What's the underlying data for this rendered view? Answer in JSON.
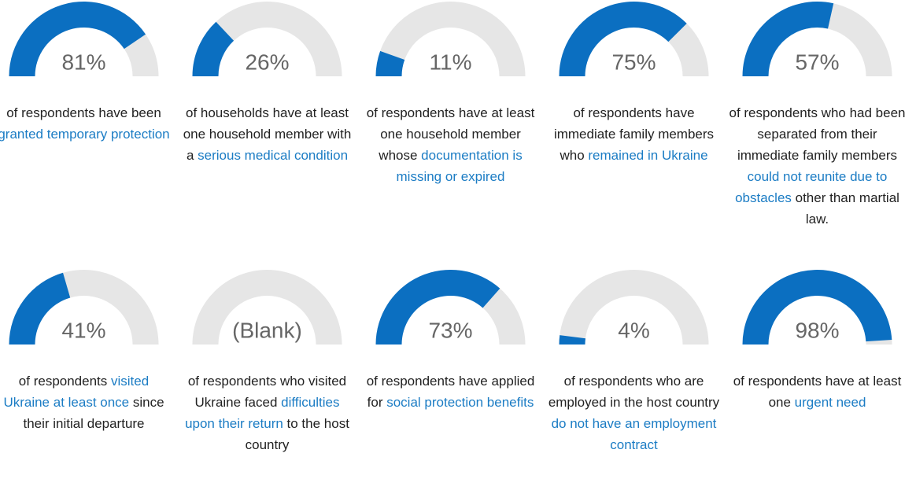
{
  "chart_data": [
    {
      "type": "gauge",
      "ylim": [
        0,
        100
      ],
      "values": [
        81
      ],
      "value_labels": [
        "81%"
      ],
      "color": "#0b6fc1",
      "track_color": "#e6e6e6",
      "description": [
        {
          "text": "of respondents have been "
        },
        {
          "text": "granted temporary protection",
          "highlight": true
        }
      ]
    },
    {
      "type": "gauge",
      "ylim": [
        0,
        100
      ],
      "values": [
        26
      ],
      "value_labels": [
        "26%"
      ],
      "color": "#0b6fc1",
      "track_color": "#e6e6e6",
      "description": [
        {
          "text": "of households have at least one household member with a "
        },
        {
          "text": "serious medical condition",
          "highlight": true
        }
      ]
    },
    {
      "type": "gauge",
      "ylim": [
        0,
        100
      ],
      "values": [
        11
      ],
      "value_labels": [
        "11%"
      ],
      "color": "#0b6fc1",
      "track_color": "#e6e6e6",
      "description": [
        {
          "text": "of respondents have at least one household member whose "
        },
        {
          "text": "documentation is missing or expired",
          "highlight": true
        }
      ]
    },
    {
      "type": "gauge",
      "ylim": [
        0,
        100
      ],
      "values": [
        75
      ],
      "value_labels": [
        "75%"
      ],
      "color": "#0b6fc1",
      "track_color": "#e6e6e6",
      "description": [
        {
          "text": "of respondents have immediate family members who "
        },
        {
          "text": "remained in Ukraine",
          "highlight": true
        }
      ]
    },
    {
      "type": "gauge",
      "ylim": [
        0,
        100
      ],
      "values": [
        57
      ],
      "value_labels": [
        "57%"
      ],
      "color": "#0b6fc1",
      "track_color": "#e6e6e6",
      "description": [
        {
          "text": "of respondents who had been separated from their immediate family members "
        },
        {
          "text": "could not reunite due to obstacles",
          "highlight": true
        },
        {
          "text": " other than martial law."
        }
      ]
    },
    {
      "type": "gauge",
      "ylim": [
        0,
        100
      ],
      "values": [
        41
      ],
      "value_labels": [
        "41%"
      ],
      "color": "#0b6fc1",
      "track_color": "#e6e6e6",
      "description": [
        {
          "text": "of respondents "
        },
        {
          "text": "visited Ukraine at least once",
          "highlight": true
        },
        {
          "text": " since their initial departure"
        }
      ]
    },
    {
      "type": "gauge",
      "ylim": [
        0,
        100
      ],
      "values": [
        null
      ],
      "value_labels": [
        "(Blank)"
      ],
      "color": "#0b6fc1",
      "track_color": "#e6e6e6",
      "description": [
        {
          "text": "of respondents who visited Ukraine faced "
        },
        {
          "text": "difficulties upon their return",
          "highlight": true
        },
        {
          "text": " to the host country"
        }
      ]
    },
    {
      "type": "gauge",
      "ylim": [
        0,
        100
      ],
      "values": [
        73
      ],
      "value_labels": [
        "73%"
      ],
      "color": "#0b6fc1",
      "track_color": "#e6e6e6",
      "description": [
        {
          "text": "of respondents have applied for "
        },
        {
          "text": "social protection benefits",
          "highlight": true
        }
      ]
    },
    {
      "type": "gauge",
      "ylim": [
        0,
        100
      ],
      "values": [
        4
      ],
      "value_labels": [
        "4%"
      ],
      "color": "#0b6fc1",
      "track_color": "#e6e6e6",
      "description": [
        {
          "text": "of respondents who are employed in the host country "
        },
        {
          "text": "do not have an employment contract",
          "highlight": true
        }
      ]
    },
    {
      "type": "gauge",
      "ylim": [
        0,
        100
      ],
      "values": [
        98
      ],
      "value_labels": [
        "98%"
      ],
      "color": "#0b6fc1",
      "track_color": "#e6e6e6",
      "description": [
        {
          "text": "of respondents have at least one "
        },
        {
          "text": "urgent need",
          "highlight": true
        }
      ]
    }
  ]
}
